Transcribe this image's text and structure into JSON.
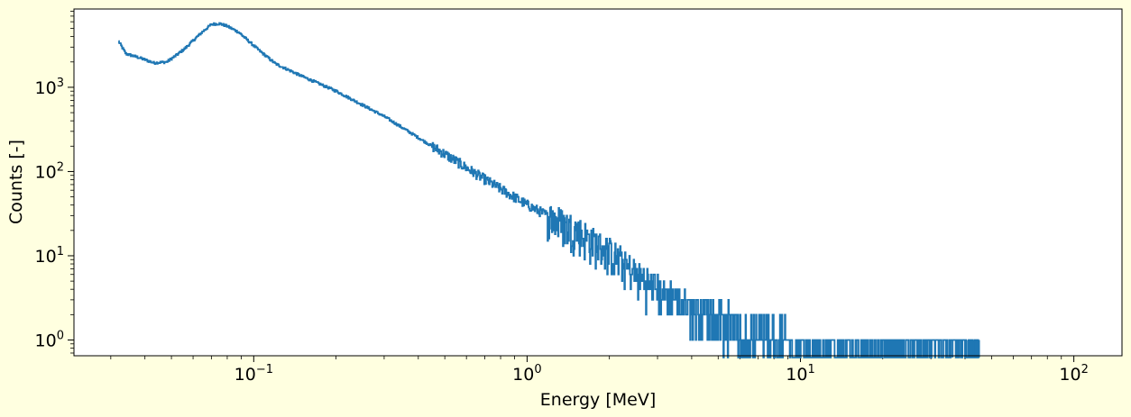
{
  "chart_data": {
    "type": "line",
    "style": "step",
    "title": "",
    "xlabel": "Energy [MeV]",
    "ylabel": "Counts [-]",
    "xscale": "log",
    "yscale": "log",
    "xlim": [
      0.022,
      150
    ],
    "ylim": [
      0.65,
      8500
    ],
    "x_ticks": [
      {
        "value": 0.1,
        "base": "10",
        "exp": "−1"
      },
      {
        "value": 1,
        "base": "10",
        "exp": "0"
      },
      {
        "value": 10,
        "base": "10",
        "exp": "1"
      },
      {
        "value": 100,
        "base": "10",
        "exp": "2"
      }
    ],
    "y_ticks": [
      {
        "value": 1,
        "base": "10",
        "exp": "0"
      },
      {
        "value": 10,
        "base": "10",
        "exp": "1"
      },
      {
        "value": 100,
        "base": "10",
        "exp": "2"
      },
      {
        "value": 1000,
        "base": "10",
        "exp": "3"
      }
    ],
    "series_color": "#1f77b4",
    "series": [
      {
        "name": "counts",
        "anchors": [
          [
            0.032,
            3500
          ],
          [
            0.034,
            2500
          ],
          [
            0.038,
            2250
          ],
          [
            0.043,
            1950
          ],
          [
            0.048,
            2000
          ],
          [
            0.052,
            2400
          ],
          [
            0.056,
            2900
          ],
          [
            0.06,
            3600
          ],
          [
            0.065,
            4600
          ],
          [
            0.07,
            5600
          ],
          [
            0.075,
            5700
          ],
          [
            0.08,
            5300
          ],
          [
            0.088,
            4500
          ],
          [
            0.095,
            3600
          ],
          [
            0.105,
            2700
          ],
          [
            0.12,
            1900
          ],
          [
            0.15,
            1350
          ],
          [
            0.2,
            900
          ],
          [
            0.3,
            450
          ],
          [
            0.5,
            160
          ],
          [
            0.7,
            80
          ],
          [
            1.0,
            40
          ],
          [
            1.5,
            20
          ],
          [
            2.0,
            11
          ],
          [
            2.5,
            6
          ],
          [
            3.0,
            4
          ],
          [
            4.0,
            2.5
          ],
          [
            6.0,
            1.5
          ],
          [
            10.0,
            1.0
          ],
          [
            25.0,
            1.0
          ],
          [
            45.0,
            1.0
          ]
        ],
        "isolated_events_x": [
          29,
          36,
          38,
          41,
          43,
          45
        ]
      }
    ]
  }
}
